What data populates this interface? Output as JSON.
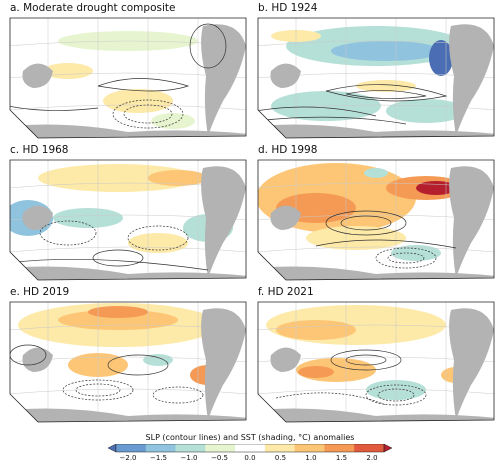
{
  "panels": [
    {
      "id": "a",
      "title": "a. Moderate drought composite"
    },
    {
      "id": "b",
      "title": "b. HD 1924"
    },
    {
      "id": "c",
      "title": "c. HD 1968"
    },
    {
      "id": "d",
      "title": "d. HD 1998"
    },
    {
      "id": "e",
      "title": "e. HD 2019"
    },
    {
      "id": "f",
      "title": "f. HD 2021"
    }
  ],
  "colorbar": {
    "label": "SLP (contour lines) and SST (shading, °C) anomalies",
    "ticks": [
      "−2.0",
      "−1.5",
      "−1.0",
      "−0.5",
      "0.0",
      "0.5",
      "1.0",
      "1.5",
      "2.0"
    ],
    "colors": [
      "#4a6db3",
      "#6a9bd0",
      "#8fc3de",
      "#b5e0d7",
      "#e6f5d0",
      "#ffffff",
      "#fde9a8",
      "#fdc676",
      "#f59a55",
      "#e05a3b",
      "#b51e2d"
    ]
  },
  "colors": {
    "land": "#b3b3b3",
    "grid": "#c9c9c9",
    "frame": "#222222"
  }
}
